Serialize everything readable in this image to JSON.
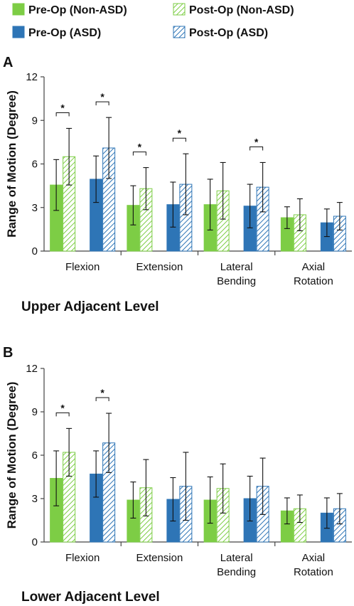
{
  "legend": [
    {
      "label": "Pre-Op (Non-ASD)",
      "style": "solid",
      "color": "#7dcd45"
    },
    {
      "label": "Post-Op (Non-ASD)",
      "style": "hatched",
      "color": "#7dcd45"
    },
    {
      "label": "Pre-Op (ASD)",
      "style": "solid",
      "color": "#2e75b6"
    },
    {
      "label": "Post-Op (ASD)",
      "style": "hatched",
      "color": "#2e75b6"
    }
  ],
  "colors": {
    "green": "#7dcd45",
    "blue": "#2e75b6",
    "axis": "#444444"
  },
  "chart_data": [
    {
      "type": "bar",
      "panel": "A",
      "caption": "Upper Adjacent Level",
      "ylabel": "Range of Motion (Degree)",
      "ylim": [
        0,
        12
      ],
      "yticks": [
        0,
        3,
        6,
        9,
        12
      ],
      "categories": [
        [
          "Flexion"
        ],
        [
          "Extension"
        ],
        [
          "Lateral",
          "Bending"
        ],
        [
          "Axial",
          "Rotation"
        ]
      ],
      "series": [
        {
          "name": "Pre-Op (Non-ASD)",
          "values": [
            4.55,
            3.15,
            3.2,
            2.3
          ],
          "errors": [
            1.75,
            1.35,
            1.75,
            0.75
          ]
        },
        {
          "name": "Post-Op (Non-ASD)",
          "values": [
            6.5,
            4.3,
            4.15,
            2.5
          ],
          "errors": [
            1.95,
            1.45,
            1.95,
            1.1
          ]
        },
        {
          "name": "Pre-Op (ASD)",
          "values": [
            4.95,
            3.2,
            3.1,
            1.95
          ],
          "errors": [
            1.6,
            1.55,
            1.5,
            0.95
          ]
        },
        {
          "name": "Post-Op (ASD)",
          "values": [
            7.1,
            4.6,
            4.4,
            2.4
          ],
          "errors": [
            2.1,
            2.1,
            1.7,
            0.95
          ]
        }
      ],
      "significance": [
        {
          "category": 0,
          "pair": "Non-ASD",
          "label": "*"
        },
        {
          "category": 0,
          "pair": "ASD",
          "label": "*"
        },
        {
          "category": 1,
          "pair": "Non-ASD",
          "label": "*"
        },
        {
          "category": 1,
          "pair": "ASD",
          "label": "*"
        },
        {
          "category": 2,
          "pair": "ASD",
          "label": "*"
        }
      ]
    },
    {
      "type": "bar",
      "panel": "B",
      "caption": "Lower Adjacent Level",
      "ylabel": "Range of Motion (Degree)",
      "ylim": [
        0,
        12
      ],
      "yticks": [
        0,
        3,
        6,
        9,
        12
      ],
      "categories": [
        [
          "Flexion"
        ],
        [
          "Extension"
        ],
        [
          "Lateral",
          "Bending"
        ],
        [
          "Axial",
          "Rotation"
        ]
      ],
      "series": [
        {
          "name": "Pre-Op (Non-ASD)",
          "values": [
            4.4,
            2.9,
            2.9,
            2.15
          ],
          "errors": [
            1.9,
            1.25,
            1.6,
            0.9
          ]
        },
        {
          "name": "Post-Op (Non-ASD)",
          "values": [
            6.2,
            3.75,
            3.7,
            2.3
          ],
          "errors": [
            1.65,
            1.95,
            1.7,
            0.95
          ]
        },
        {
          "name": "Pre-Op (ASD)",
          "values": [
            4.7,
            2.95,
            3.0,
            2.0
          ],
          "errors": [
            1.6,
            1.5,
            1.55,
            1.05
          ]
        },
        {
          "name": "Post-Op (ASD)",
          "values": [
            6.85,
            3.85,
            3.85,
            2.3
          ],
          "errors": [
            2.05,
            2.35,
            1.95,
            1.05
          ]
        }
      ],
      "significance": [
        {
          "category": 0,
          "pair": "Non-ASD",
          "label": "*"
        },
        {
          "category": 0,
          "pair": "ASD",
          "label": "*"
        }
      ]
    }
  ]
}
